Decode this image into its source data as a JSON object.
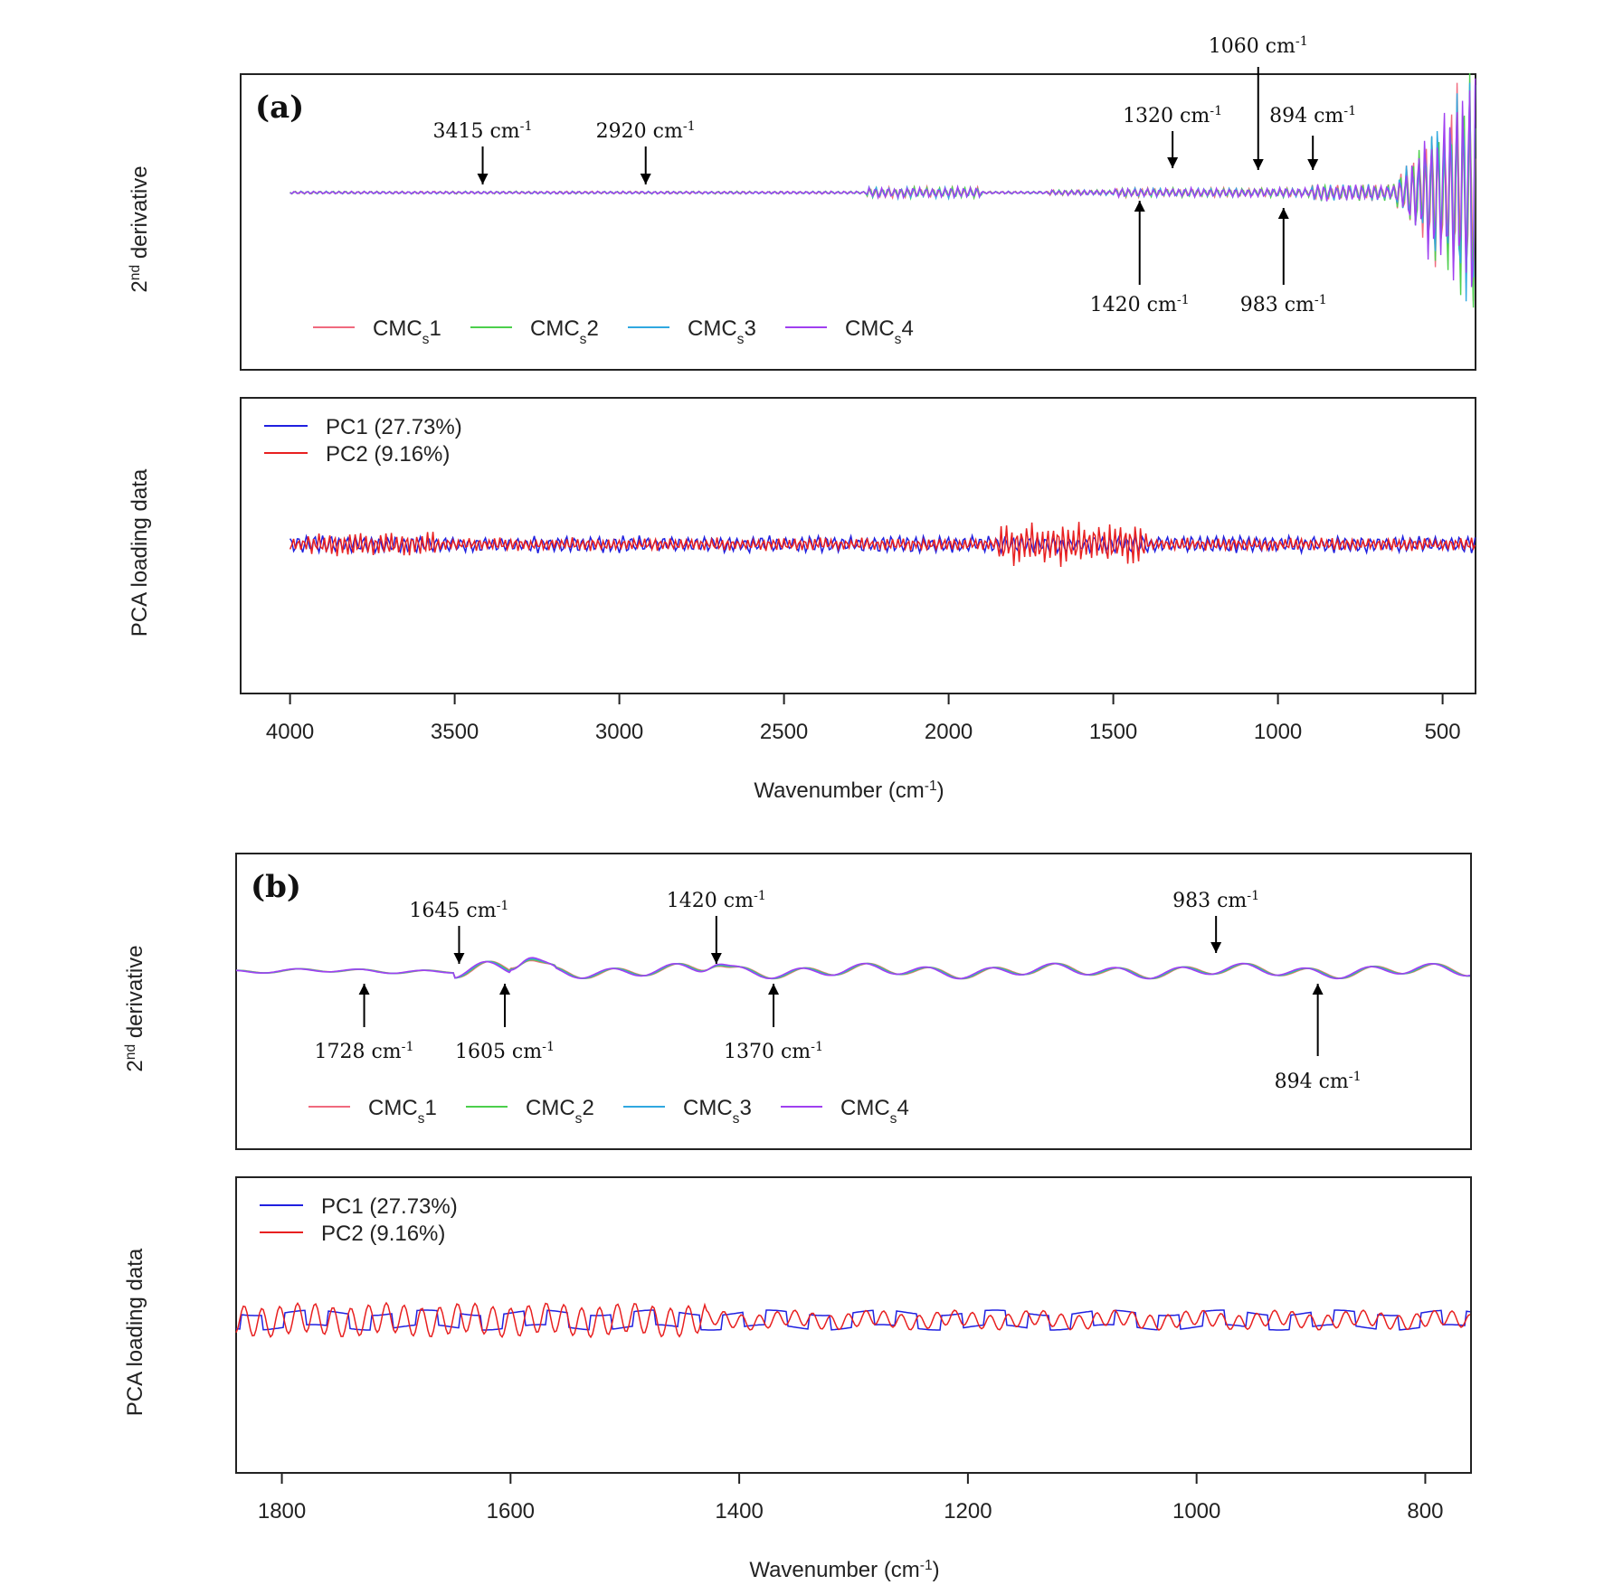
{
  "chart_data": [
    {
      "panel": "(a)",
      "type": "line",
      "ylabel": "2nd derivative",
      "xlim": [
        4150,
        400
      ],
      "series": [
        {
          "name": "CMCs1",
          "color": "#f06a7e"
        },
        {
          "name": "CMCs2",
          "color": "#4ccf4c"
        },
        {
          "name": "CMCs3",
          "color": "#30a8e0"
        },
        {
          "name": "CMCs4",
          "color": "#a040f0"
        }
      ],
      "annotations": [
        {
          "label": "3415 cm-1",
          "x": 3415,
          "direction": "down"
        },
        {
          "label": "2920 cm-1",
          "x": 2920,
          "direction": "down"
        },
        {
          "label": "1320 cm-1",
          "x": 1320,
          "direction": "down"
        },
        {
          "label": "1060 cm-1",
          "x": 1060,
          "direction": "down"
        },
        {
          "label": "894 cm-1",
          "x": 894,
          "direction": "down"
        },
        {
          "label": "1420 cm-1",
          "x": 1420,
          "direction": "up"
        },
        {
          "label": "983 cm-1",
          "x": 983,
          "direction": "up"
        }
      ]
    },
    {
      "panel": "(a)",
      "type": "line",
      "ylabel": "PCA loading data",
      "xlabel": "Wavenumber (cm-1)",
      "xlim": [
        4150,
        400
      ],
      "xticks": [
        4000,
        3500,
        3000,
        2500,
        2000,
        1500,
        1000,
        500
      ],
      "series": [
        {
          "name": "PC1 (27.73%)",
          "color": "#2020e0"
        },
        {
          "name": "PC2 (9.16%)",
          "color": "#e82020"
        }
      ]
    },
    {
      "panel": "(b)",
      "type": "line",
      "ylabel": "2nd derivative",
      "xlim": [
        1840,
        760
      ],
      "series": [
        {
          "name": "CMCs1",
          "color": "#f06a7e"
        },
        {
          "name": "CMCs2",
          "color": "#4ccf4c"
        },
        {
          "name": "CMCs3",
          "color": "#30a8e0"
        },
        {
          "name": "CMCs4",
          "color": "#a040f0"
        }
      ],
      "annotations": [
        {
          "label": "1645 cm-1",
          "x": 1645,
          "direction": "down"
        },
        {
          "label": "1420 cm-1",
          "x": 1420,
          "direction": "down"
        },
        {
          "label": "983 cm-1",
          "x": 983,
          "direction": "down"
        },
        {
          "label": "1728 cm-1",
          "x": 1728,
          "direction": "up"
        },
        {
          "label": "1605 cm-1",
          "x": 1605,
          "direction": "up"
        },
        {
          "label": "1370 cm-1",
          "x": 1370,
          "direction": "up"
        },
        {
          "label": "894 cm-1",
          "x": 894,
          "direction": "up"
        }
      ]
    },
    {
      "panel": "(b)",
      "type": "line",
      "ylabel": "PCA loading data",
      "xlabel": "Wavenumber (cm-1)",
      "xlim": [
        1840,
        760
      ],
      "xticks": [
        1800,
        1600,
        1400,
        1200,
        1000,
        800
      ],
      "series": [
        {
          "name": "PC1 (27.73%)",
          "color": "#2020e0"
        },
        {
          "name": "PC2 (9.16%)",
          "color": "#e82020"
        }
      ]
    }
  ]
}
